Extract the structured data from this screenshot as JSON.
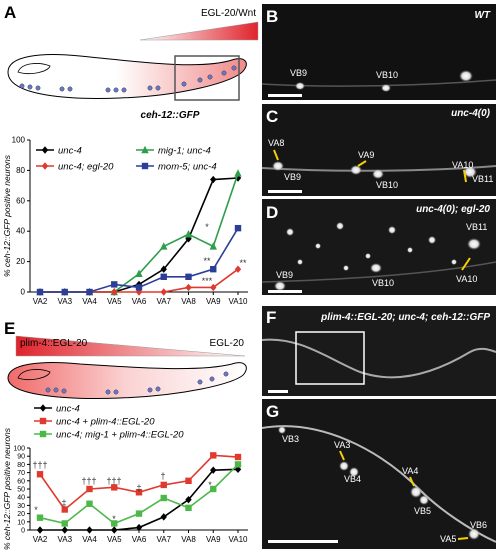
{
  "panel_letters": [
    "A",
    "B",
    "C",
    "D",
    "E",
    "F",
    "G"
  ],
  "schematic_A": {
    "gradient_label": "EGL-20/Wnt",
    "reporter": "ceh-12::GFP"
  },
  "schematic_E": {
    "left_label": "plim-4::EGL-20",
    "right_label": "EGL-20"
  },
  "micrographs": {
    "B": {
      "genotype": "WT",
      "cells": [
        "VB9",
        "VB10"
      ]
    },
    "C": {
      "genotype": "unc-4(0)",
      "cells": [
        "VA8",
        "VB9",
        "VA9",
        "VB10",
        "VA10",
        "VB11"
      ]
    },
    "D": {
      "genotype": "unc-4(0); egl-20",
      "cells": [
        "VB11",
        "VA10",
        "VB9",
        "VB10"
      ]
    },
    "F": {
      "genotype": "plim-4::EGL-20; unc-4; ceh-12::GFP"
    },
    "G": {
      "cells": [
        "VB3",
        "VA3",
        "VB4",
        "VA4",
        "VB5",
        "VA5",
        "VB6"
      ]
    }
  },
  "chart_data": [
    {
      "type": "line",
      "y_label": "% ceh-12::GFP positive neurons",
      "categories": [
        "VA2",
        "VA3",
        "VA4",
        "VA5",
        "VA6",
        "VA7",
        "VA8",
        "VA9",
        "VA10"
      ],
      "ylim": [
        0,
        100
      ],
      "yticks": [
        0,
        20,
        40,
        60,
        80,
        100
      ],
      "series": [
        {
          "name": "unc-4",
          "color": "#000000",
          "marker": "diamond",
          "values": [
            0,
            0,
            0,
            0,
            5,
            15,
            35,
            74,
            75
          ]
        },
        {
          "name": "mig-1; unc-4",
          "color": "#2e9e4a",
          "marker": "triangle",
          "values": [
            0,
            0,
            0,
            0,
            12,
            30,
            38,
            30,
            78
          ]
        },
        {
          "name": "unc-4; egl-20",
          "color": "#e03a2f",
          "marker": "diamond",
          "values": [
            0,
            0,
            0,
            0,
            0,
            0,
            3,
            3,
            15
          ]
        },
        {
          "name": "mom-5; unc-4",
          "color": "#2b3f99",
          "marker": "square",
          "values": [
            0,
            0,
            0,
            5,
            3,
            10,
            10,
            15,
            42
          ]
        }
      ],
      "annotations": [
        "*",
        "**",
        "***",
        "**"
      ]
    },
    {
      "type": "line",
      "y_label": "% ceh-12::GFP positive neurons",
      "categories": [
        "VA2",
        "VA3",
        "VA4",
        "VA5",
        "VA6",
        "VA7",
        "VA8",
        "VA9",
        "VA10"
      ],
      "ylim": [
        0,
        100
      ],
      "yticks": [
        0,
        10,
        20,
        30,
        40,
        50,
        60,
        70,
        80,
        90,
        100
      ],
      "series": [
        {
          "name": "unc-4",
          "color": "#000000",
          "marker": "diamond",
          "values": [
            0,
            0,
            0,
            0,
            3,
            16,
            37,
            73,
            74
          ]
        },
        {
          "name": "unc-4 + plim-4::EGL-20",
          "color": "#e03a2f",
          "marker": "square",
          "values": [
            68,
            25,
            50,
            52,
            46,
            55,
            60,
            91,
            89
          ]
        },
        {
          "name": "unc-4; mig-1 + plim-4::EGL-20",
          "color": "#4cb84a",
          "marker": "square",
          "values": [
            15,
            8,
            32,
            8,
            20,
            39,
            27,
            50,
            80
          ]
        }
      ],
      "annotations": [
        "†††",
        "*",
        "‡",
        "†††",
        "†††",
        "*",
        "‡",
        "†",
        "*"
      ]
    }
  ]
}
